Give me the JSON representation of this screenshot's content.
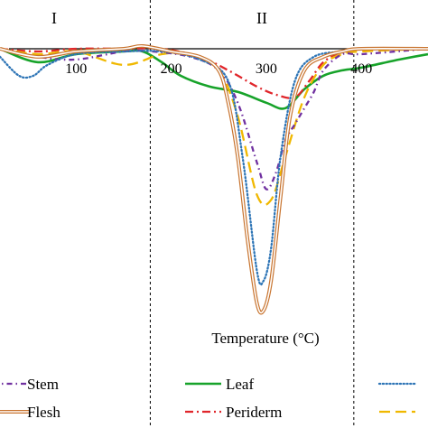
{
  "chart_data": {
    "type": "line",
    "title": "",
    "xlabel": "Temperature (°C)",
    "ylabel": "",
    "xlim": [
      20,
      470
    ],
    "ylim": [
      -100,
      3
    ],
    "x_ticks": [
      100,
      200,
      300,
      400
    ],
    "regions": [
      {
        "label": "I",
        "x_start": 20,
        "x_end": 178
      },
      {
        "label": "II",
        "x_start": 178,
        "x_end": 392
      }
    ],
    "region_boundaries": [
      178,
      392
    ],
    "legend_position": "bottom",
    "grid": false,
    "series": [
      {
        "name": "Stem",
        "color": "#7030a0",
        "dash": "short-dash-dot",
        "x": [
          20,
          60,
          100,
          150,
          180,
          220,
          250,
          270,
          290,
          300,
          310,
          320,
          330,
          340,
          350,
          360,
          380,
          400,
          470
        ],
        "y": [
          0,
          -3,
          -4,
          -1,
          -1,
          -3,
          -8,
          -20,
          -42,
          -52,
          -46,
          -34,
          -28,
          -22,
          -16,
          -8,
          -2,
          -2,
          0
        ]
      },
      {
        "name": "Leaf",
        "color": "#17a32a",
        "dash": "solid",
        "x": [
          20,
          60,
          100,
          150,
          170,
          190,
          210,
          240,
          270,
          300,
          320,
          340,
          360,
          380,
          400,
          440,
          470
        ],
        "y": [
          0,
          -5,
          -2,
          -1,
          -1,
          -5,
          -10,
          -14,
          -16,
          -20,
          -22,
          -15,
          -10,
          -8,
          -7,
          -4,
          -2
        ]
      },
      {
        "name": "Flesh",
        "color": "#c8742f",
        "dash": "double",
        "x": [
          20,
          60,
          100,
          150,
          170,
          200,
          230,
          250,
          260,
          270,
          280,
          290,
          297,
          305,
          315,
          325,
          340,
          360,
          380,
          400,
          470
        ],
        "y": [
          0,
          -3,
          -1,
          0,
          1,
          -1,
          -3,
          -8,
          -20,
          -40,
          -70,
          -94,
          -97,
          -86,
          -55,
          -25,
          -8,
          -3,
          -1,
          0,
          0
        ]
      },
      {
        "name": "Periderm",
        "color": "#e0262b",
        "dash": "dash-dot",
        "x": [
          20,
          60,
          100,
          150,
          190,
          230,
          260,
          290,
          310,
          330,
          345,
          360,
          380,
          400,
          470
        ],
        "y": [
          0,
          -1,
          0,
          0,
          0,
          -3,
          -8,
          -14,
          -17,
          -18,
          -12,
          -5,
          -1,
          0,
          0
        ]
      },
      {
        "name": "",
        "color": "#2e75b6",
        "dash": "dotted",
        "x": [
          20,
          40,
          55,
          70,
          100,
          150,
          190,
          230,
          260,
          275,
          290,
          297,
          305,
          315,
          330,
          350,
          380,
          400,
          470
        ],
        "y": [
          -3,
          -10,
          -10,
          -6,
          -2,
          -1,
          -1,
          -4,
          -12,
          -40,
          -82,
          -86,
          -74,
          -40,
          -12,
          -3,
          -1,
          0,
          0
        ]
      },
      {
        "name": "",
        "color": "#f0b800",
        "dash": "long-dash",
        "x": [
          20,
          60,
          100,
          150,
          190,
          220,
          250,
          270,
          290,
          305,
          320,
          340,
          360,
          380,
          400,
          470
        ],
        "y": [
          0,
          -2,
          -1,
          -6,
          -2,
          -2,
          -8,
          -25,
          -54,
          -56,
          -40,
          -18,
          -6,
          -2,
          -1,
          0
        ]
      }
    ]
  },
  "legend": {
    "entries": [
      {
        "label": "Stem",
        "color": "#7030a0",
        "dash": "short-dash-dot"
      },
      {
        "label": "Leaf",
        "color": "#17a32a",
        "dash": "solid"
      },
      {
        "label": "",
        "color": "#2e75b6",
        "dash": "dotted"
      },
      {
        "label": "Flesh",
        "color": "#c8742f",
        "dash": "double"
      },
      {
        "label": "Periderm",
        "color": "#e0262b",
        "dash": "dash-dot"
      },
      {
        "label": "",
        "color": "#f0b800",
        "dash": "long-dash"
      }
    ]
  }
}
